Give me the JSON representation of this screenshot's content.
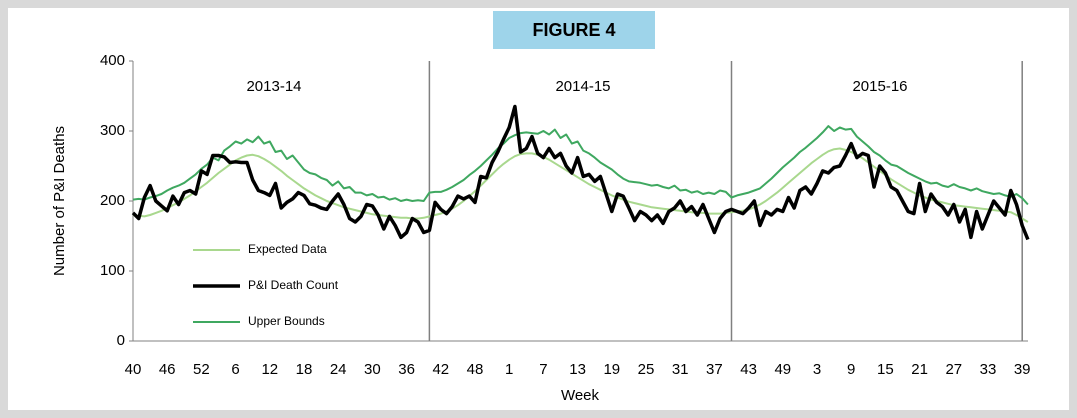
{
  "chart_data": {
    "type": "line",
    "title": "FIGURE 4",
    "x_label": "Week",
    "y_label": "Number of P&I Deaths",
    "annotations": [
      "2013-14",
      "2014-15",
      "2015-16"
    ],
    "categories": [
      "40",
      null,
      null,
      null,
      null,
      null,
      "46",
      null,
      null,
      null,
      null,
      null,
      "52",
      null,
      null,
      null,
      null,
      null,
      "6",
      null,
      null,
      null,
      null,
      null,
      "12",
      null,
      null,
      null,
      null,
      null,
      "18",
      null,
      null,
      null,
      null,
      null,
      "24",
      null,
      null,
      null,
      null,
      null,
      "30",
      null,
      null,
      null,
      null,
      null,
      "36",
      null,
      null,
      null,
      null,
      null,
      "42",
      null,
      null,
      null,
      null,
      null,
      "48",
      null,
      null,
      null,
      null,
      null,
      "1",
      null,
      null,
      null,
      null,
      null,
      "7",
      null,
      null,
      null,
      null,
      null,
      "13",
      null,
      null,
      null,
      null,
      null,
      "19",
      null,
      null,
      null,
      null,
      null,
      "25",
      null,
      null,
      null,
      null,
      null,
      "31",
      null,
      null,
      null,
      null,
      null,
      "37",
      null,
      null,
      null,
      null,
      null,
      "43",
      null,
      null,
      null,
      null,
      null,
      "49",
      null,
      null,
      null,
      null,
      null,
      "3",
      null,
      null,
      null,
      null,
      null,
      "9",
      null,
      null,
      null,
      null,
      null,
      "15",
      null,
      null,
      null,
      null,
      null,
      "21",
      null,
      null,
      null,
      null,
      null,
      "27",
      null,
      null,
      null,
      null,
      null,
      "33",
      null,
      null,
      null,
      null,
      null,
      "39",
      null
    ],
    "series": [
      {
        "name": "Expected Data",
        "color": "#a9d88e",
        "width": 2,
        "values": [
          180,
          179,
          178,
          180,
          183,
          186,
          190,
          194,
          198,
          203,
          208,
          214,
          220,
          226,
          233,
          240,
          246,
          252,
          258,
          262,
          265,
          266,
          264,
          260,
          255,
          249,
          243,
          236,
          230,
          224,
          218,
          213,
          208,
          204,
          200,
          197,
          194,
          191,
          189,
          187,
          185,
          183,
          181,
          180,
          179,
          178,
          177,
          176,
          176,
          175,
          175,
          176,
          178,
          180,
          182,
          185,
          189,
          194,
          200,
          207,
          214,
          222,
          230,
          238,
          246,
          253,
          259,
          264,
          267,
          268,
          268,
          266,
          263,
          259,
          254,
          249,
          244,
          239,
          234,
          229,
          224,
          220,
          216,
          212,
          208,
          205,
          202,
          199,
          197,
          195,
          193,
          191,
          190,
          189,
          188,
          187,
          186,
          185,
          184,
          183,
          183,
          182,
          182,
          182,
          183,
          184,
          185,
          186,
          188,
          191,
          195,
          200,
          206,
          212,
          219,
          226,
          233,
          240,
          247,
          254,
          260,
          266,
          271,
          274,
          275,
          273,
          270,
          266,
          261,
          255,
          249,
          243,
          237,
          231,
          226,
          221,
          216,
          212,
          208,
          205,
          202,
          200,
          198,
          196,
          194,
          193,
          192,
          191,
          190,
          189,
          188,
          187,
          186,
          185,
          184,
          180,
          175,
          170
        ]
      },
      {
        "name": "P&I Death Count",
        "color": "#000000",
        "width": 3.5,
        "values": [
          183,
          175,
          205,
          222,
          200,
          193,
          186,
          207,
          195,
          212,
          215,
          210,
          243,
          238,
          265,
          265,
          263,
          255,
          256,
          255,
          255,
          230,
          215,
          212,
          208,
          225,
          190,
          198,
          203,
          212,
          208,
          196,
          194,
          190,
          188,
          200,
          210,
          195,
          175,
          170,
          178,
          195,
          193,
          180,
          160,
          178,
          165,
          148,
          155,
          175,
          170,
          155,
          158,
          198,
          188,
          182,
          192,
          207,
          203,
          207,
          198,
          235,
          233,
          255,
          270,
          288,
          305,
          335,
          270,
          275,
          292,
          268,
          262,
          275,
          262,
          268,
          250,
          240,
          262,
          235,
          238,
          228,
          235,
          210,
          185,
          210,
          207,
          190,
          172,
          185,
          180,
          172,
          180,
          168,
          185,
          190,
          200,
          185,
          192,
          180,
          195,
          175,
          155,
          175,
          185,
          188,
          185,
          182,
          190,
          200,
          165,
          185,
          180,
          188,
          185,
          205,
          190,
          215,
          220,
          210,
          225,
          243,
          240,
          248,
          250,
          265,
          282,
          262,
          268,
          265,
          220,
          250,
          240,
          220,
          215,
          200,
          185,
          182,
          225,
          185,
          210,
          198,
          192,
          180,
          195,
          170,
          188,
          148,
          185,
          160,
          180,
          200,
          190,
          180,
          215,
          195,
          165,
          145
        ]
      },
      {
        "name": "Upper Bounds",
        "color": "#3fa860",
        "width": 2,
        "values": [
          202,
          203,
          202,
          205,
          207,
          210,
          215,
          219,
          222,
          226,
          232,
          238,
          246,
          252,
          262,
          258,
          272,
          278,
          285,
          282,
          288,
          284,
          292,
          282,
          285,
          270,
          272,
          260,
          265,
          255,
          245,
          240,
          238,
          233,
          230,
          222,
          228,
          218,
          220,
          212,
          212,
          208,
          210,
          205,
          206,
          202,
          204,
          200,
          202,
          200,
          201,
          200,
          212,
          213,
          213,
          216,
          220,
          225,
          230,
          237,
          243,
          250,
          258,
          266,
          275,
          282,
          290,
          294,
          297,
          298,
          297,
          296,
          300,
          295,
          302,
          290,
          295,
          282,
          285,
          272,
          268,
          262,
          255,
          250,
          245,
          238,
          232,
          228,
          227,
          226,
          224,
          222,
          223,
          220,
          218,
          222,
          215,
          216,
          212,
          214,
          210,
          212,
          210,
          215,
          213,
          205,
          208,
          210,
          212,
          215,
          218,
          225,
          232,
          240,
          248,
          255,
          262,
          270,
          276,
          283,
          290,
          298,
          307,
          300,
          305,
          302,
          303,
          292,
          285,
          278,
          270,
          265,
          258,
          252,
          250,
          245,
          240,
          236,
          232,
          228,
          225,
          226,
          222,
          220,
          224,
          220,
          218,
          215,
          218,
          214,
          212,
          210,
          211,
          208,
          206,
          210,
          204,
          195
        ]
      }
    ],
    "ylim": [
      0,
      400
    ],
    "yticks": [
      0,
      100,
      200,
      300,
      400
    ],
    "grid": false
  }
}
